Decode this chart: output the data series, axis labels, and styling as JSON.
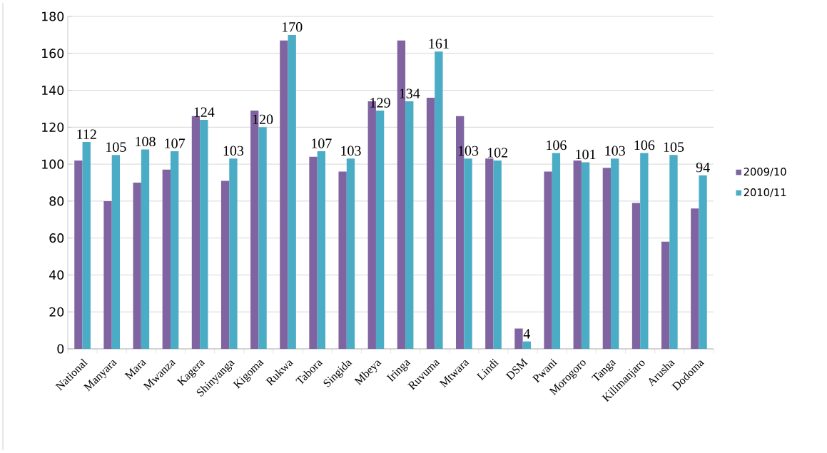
{
  "chart_data": {
    "type": "bar",
    "categories": [
      "National",
      "Manyara",
      "Mara",
      "Mwanza",
      "Kagera",
      "Shinyanga",
      "Kigoma",
      "Rukwa",
      "Tabora",
      "Singida",
      "Mbeya",
      "Iringa",
      "Ruvuma",
      "Mtwara",
      "Lindi",
      "DSM",
      "Pwani",
      "Morogoro",
      "Tanga",
      "Kilimanjaro",
      "Arusha",
      "Dodoma"
    ],
    "series": [
      {
        "name": "2009/10",
        "color": "#8064a2",
        "values": [
          102,
          80,
          90,
          97,
          126,
          91,
          129,
          167,
          104,
          96,
          134,
          167,
          136,
          126,
          103,
          11,
          96,
          102,
          98,
          79,
          58,
          76
        ]
      },
      {
        "name": "2010/11",
        "color": "#4bacc6",
        "values": [
          112,
          105,
          108,
          107,
          124,
          103,
          120,
          170,
          107,
          103,
          129,
          134,
          161,
          103,
          102,
          4,
          106,
          101,
          103,
          106,
          105,
          94
        ],
        "value_labels": [
          "112",
          "105",
          "108",
          "107",
          "124",
          "103",
          "120",
          "170",
          "107",
          "103",
          "129",
          "134",
          "161",
          "103",
          "102",
          "4",
          "106",
          "101",
          "103",
          "106",
          "105",
          "94"
        ]
      }
    ],
    "ylim": [
      0,
      180
    ],
    "yticks": [
      0,
      20,
      40,
      60,
      80,
      100,
      120,
      140,
      160,
      180
    ],
    "grid": "y",
    "legend": "right"
  }
}
